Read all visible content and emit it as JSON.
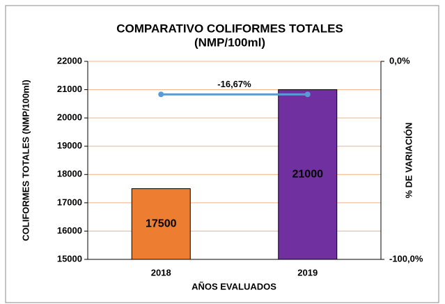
{
  "chart_data": {
    "type": "bar",
    "title": "COMPARATIVO COLIFORMES TOTALES",
    "subtitle": "(NMP/100ml)",
    "x_label": "AÑOS EVALUADOS",
    "y_label": "COLIFORMES TOTALES  (NMP/100ml)",
    "y2_label": "% DE VARIACIÓN",
    "categories": [
      "2018",
      "2019"
    ],
    "series": [
      {
        "type": "bar",
        "colors": [
          "#ed7d31",
          "#7030a0"
        ],
        "values": [
          17500,
          21000
        ]
      },
      {
        "type": "line",
        "axis": "y2",
        "color": "#5b9bd5",
        "values": [
          -16.67,
          -16.67
        ],
        "value_labels": [
          "-16,67%",
          null
        ]
      }
    ],
    "ylim": [
      15000,
      22000
    ],
    "yticks": [
      15000,
      16000,
      17000,
      18000,
      19000,
      20000,
      21000,
      22000
    ],
    "y2lim": [
      -100,
      0
    ],
    "y2ticks": [
      {
        "value": 0,
        "label": "0,0%"
      },
      {
        "value": -100,
        "label": "-100,0%"
      }
    ],
    "grid": true,
    "grid_color": "#f4b183"
  }
}
